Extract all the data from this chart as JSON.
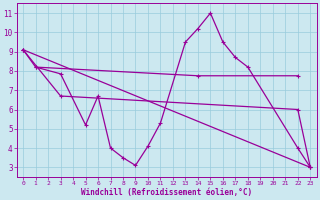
{
  "xlabel": "Windchill (Refroidissement éolien,°C)",
  "bg_color": "#cce8f0",
  "line_color": "#990099",
  "grid_color": "#99ccdd",
  "xlim": [
    -0.5,
    23.5
  ],
  "ylim": [
    2.5,
    11.5
  ],
  "yticks": [
    3,
    4,
    5,
    6,
    7,
    8,
    9,
    10,
    11
  ],
  "xticks": [
    0,
    1,
    2,
    3,
    4,
    5,
    6,
    7,
    8,
    9,
    10,
    11,
    12,
    13,
    14,
    15,
    16,
    17,
    18,
    19,
    20,
    21,
    22,
    23
  ],
  "line1_x": [
    0,
    1,
    3,
    5,
    6,
    7,
    8,
    9,
    10,
    11,
    13,
    14,
    15,
    16,
    17,
    18,
    22,
    23
  ],
  "line1_y": [
    9.1,
    8.2,
    7.85,
    5.2,
    6.7,
    4.0,
    3.5,
    3.1,
    4.1,
    5.3,
    9.5,
    10.2,
    11.0,
    9.5,
    8.7,
    8.2,
    4.0,
    3.0
  ],
  "line2_x": [
    1,
    14,
    22
  ],
  "line2_y": [
    8.2,
    7.75,
    7.75
  ],
  "line3_x": [
    0,
    23
  ],
  "line3_y": [
    9.1,
    3.0
  ],
  "line4_x": [
    0,
    3,
    22,
    23
  ],
  "line4_y": [
    9.1,
    6.7,
    6.0,
    3.0
  ]
}
